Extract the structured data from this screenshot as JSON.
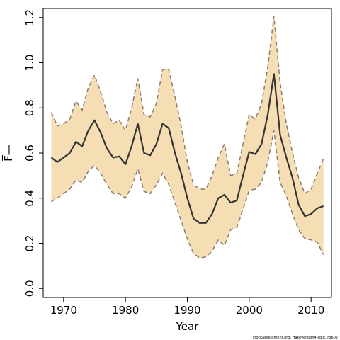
{
  "chart_data": {
    "type": "line",
    "title": "",
    "xlabel": "Year",
    "ylabel": "F̅—",
    "xlim": [
      1966.7,
      2013.3
    ],
    "ylim": [
      -0.04,
      1.24
    ],
    "x_ticks": [
      1970,
      1980,
      1990,
      2000,
      2010
    ],
    "x_tick_labels": [
      "1970",
      "1980",
      "1990",
      "2000",
      "2010"
    ],
    "y_ticks": [
      0.0,
      0.2,
      0.4,
      0.6,
      0.8,
      1.0,
      1.2
    ],
    "y_tick_labels": [
      "0.0",
      "0.2",
      "0.4",
      "0.6",
      "0.8",
      "1.0",
      "1.2"
    ],
    "grid": false,
    "colors": {
      "band": "#f5deb3",
      "band_border": "#8c7a6b",
      "line": "#333333"
    },
    "x": [
      1968,
      1969,
      1970,
      1971,
      1972,
      1973,
      1974,
      1975,
      1976,
      1977,
      1978,
      1979,
      1980,
      1981,
      1982,
      1983,
      1984,
      1985,
      1986,
      1987,
      1988,
      1989,
      1990,
      1991,
      1992,
      1993,
      1994,
      1995,
      1996,
      1997,
      1998,
      1999,
      2000,
      2001,
      2002,
      2003,
      2004,
      2005,
      2006,
      2007,
      2008,
      2009,
      2010,
      2011,
      2012
    ],
    "series": [
      {
        "role": "estimate",
        "values": [
          0.58,
          0.56,
          0.58,
          0.6,
          0.65,
          0.63,
          0.7,
          0.745,
          0.69,
          0.62,
          0.58,
          0.585,
          0.55,
          0.63,
          0.73,
          0.6,
          0.59,
          0.64,
          0.73,
          0.71,
          0.6,
          0.51,
          0.4,
          0.31,
          0.29,
          0.29,
          0.33,
          0.4,
          0.415,
          0.38,
          0.39,
          0.5,
          0.605,
          0.595,
          0.64,
          0.77,
          0.95,
          0.68,
          0.58,
          0.49,
          0.37,
          0.32,
          0.33,
          0.355,
          0.365
        ]
      },
      {
        "role": "upper",
        "values": [
          0.78,
          0.72,
          0.73,
          0.75,
          0.83,
          0.79,
          0.89,
          0.945,
          0.87,
          0.78,
          0.73,
          0.745,
          0.7,
          0.8,
          0.93,
          0.77,
          0.76,
          0.82,
          0.97,
          0.97,
          0.85,
          0.72,
          0.56,
          0.46,
          0.44,
          0.44,
          0.5,
          0.58,
          0.64,
          0.5,
          0.51,
          0.64,
          0.77,
          0.75,
          0.82,
          0.98,
          1.205,
          0.91,
          0.73,
          0.6,
          0.49,
          0.42,
          0.44,
          0.51,
          0.575
        ]
      },
      {
        "role": "lower",
        "values": [
          0.385,
          0.4,
          0.42,
          0.44,
          0.48,
          0.47,
          0.52,
          0.545,
          0.51,
          0.46,
          0.42,
          0.42,
          0.4,
          0.45,
          0.53,
          0.43,
          0.42,
          0.46,
          0.51,
          0.46,
          0.38,
          0.3,
          0.22,
          0.155,
          0.135,
          0.14,
          0.165,
          0.215,
          0.19,
          0.26,
          0.27,
          0.35,
          0.435,
          0.44,
          0.47,
          0.56,
          0.7,
          0.47,
          0.41,
          0.33,
          0.26,
          0.22,
          0.215,
          0.205,
          0.15
        ]
      }
    ]
  },
  "footnote": "stockassessment.org, Hakeversion4-split, r3602"
}
